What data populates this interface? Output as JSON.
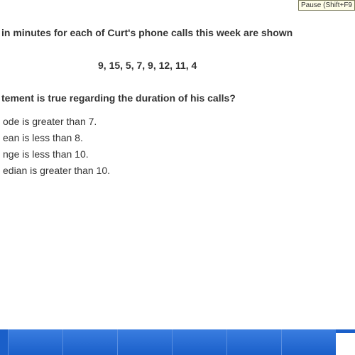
{
  "pause_badge": "Pause (Shift+F9",
  "problem": {
    "intro": " in minutes for each of Curt's phone calls this week are shown ",
    "data": "9, 15, 5, 7, 9, 12, 11, 4",
    "question": "tement is true regarding the duration of his calls?",
    "options": [
      "ode is greater than 7.",
      "ean is less than 8.",
      "nge is less than 10.",
      "edian is greater than 10."
    ]
  },
  "styling": {
    "background_color": "#ffffff",
    "text_color": "#333333",
    "font_family": "Verdana",
    "bold_fontsize": 14,
    "option_fontsize": 14,
    "bar_color": "#1a5fc9",
    "bar_highlight": "#3a7de0",
    "badge_bg": "#fefde8",
    "badge_border": "#7a7a5a"
  }
}
